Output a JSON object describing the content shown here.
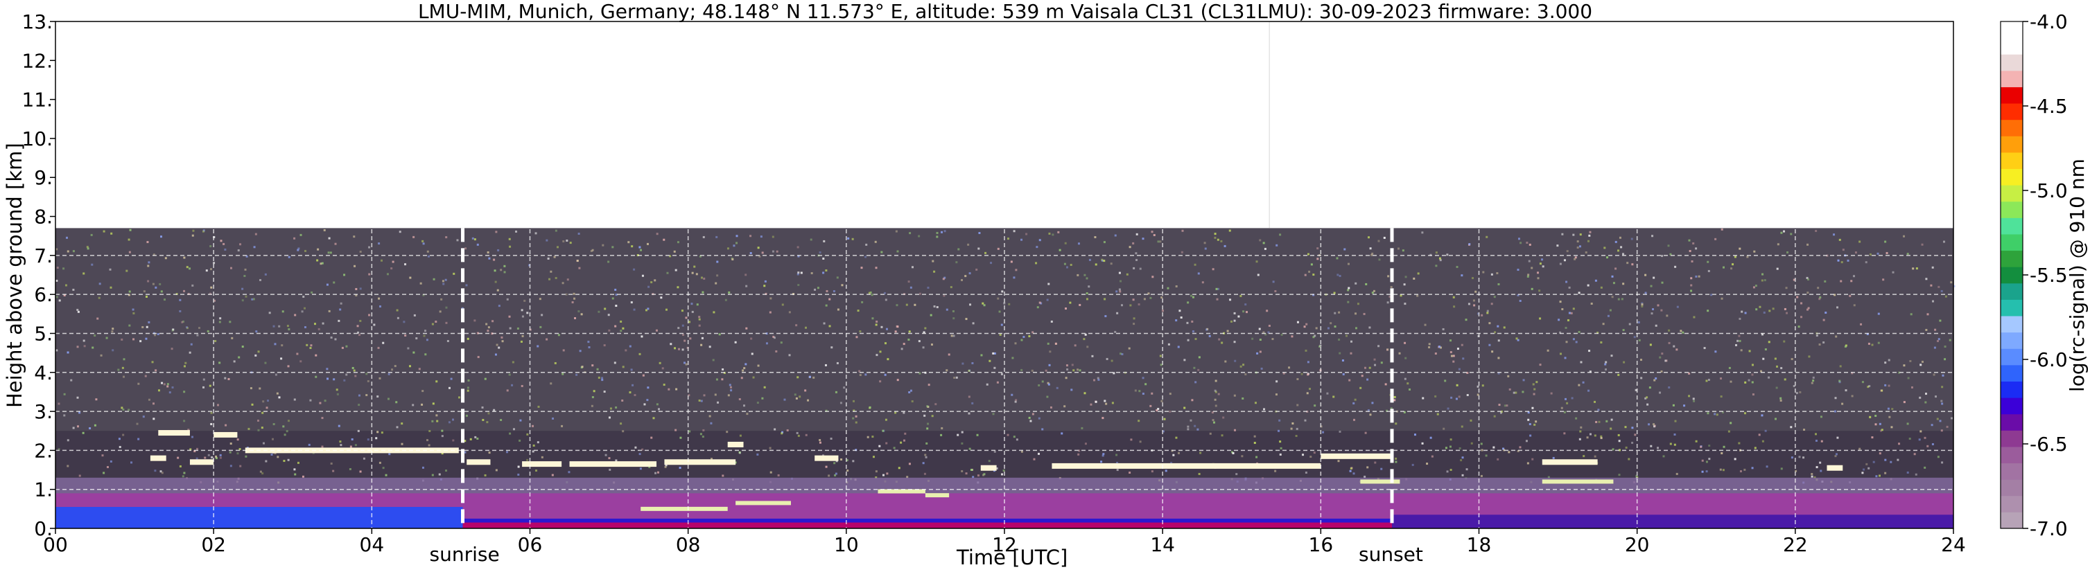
{
  "title": "LMU-MIM, Munich, Germany; 48.148° N 11.573° E, altitude: 539 m    Vaisala CL31 (CL31LMU): 30-09-2023    firmware: 3.000",
  "chart_data": {
    "type": "heatmap",
    "title": "LMU-MIM, Munich, Germany; 48.148° N 11.573° E, altitude: 539 m    Vaisala CL31 (CL31LMU): 30-09-2023    firmware: 3.000",
    "xlabel": "Time [UTC]",
    "ylabel": "Height above ground [km]",
    "xlim": [
      0,
      24
    ],
    "ylim": [
      0,
      13
    ],
    "x_ticks": [
      0,
      2,
      4,
      6,
      8,
      10,
      12,
      14,
      16,
      18,
      20,
      22,
      24
    ],
    "x_tick_labels": [
      "00",
      "02",
      "04",
      "06",
      "08",
      "10",
      "12",
      "14",
      "16",
      "18",
      "20",
      "22",
      "24"
    ],
    "y_ticks": [
      0,
      1,
      2,
      3,
      4,
      5,
      6,
      7,
      8,
      9,
      10,
      11,
      12,
      13
    ],
    "y_tick_labels": [
      "0.",
      "1.",
      "2.",
      "3.",
      "4.",
      "5.",
      "6.",
      "7.",
      "8.",
      "9.",
      "10.",
      "11.",
      "12.",
      "13."
    ],
    "grid": true,
    "data_top_km": 7.7,
    "events": [
      {
        "label": "sunrise",
        "time": 5.15
      },
      {
        "label": "sunset",
        "time": 16.9
      }
    ],
    "cloud_layers": [
      {
        "t0": 1.3,
        "t1": 1.7,
        "height": 2.45
      },
      {
        "t0": 2.0,
        "t1": 2.3,
        "height": 2.4
      },
      {
        "t0": 1.2,
        "t1": 1.4,
        "height": 1.8
      },
      {
        "t0": 1.7,
        "t1": 2.0,
        "height": 1.7
      },
      {
        "t0": 2.4,
        "t1": 5.1,
        "height": 2.0
      },
      {
        "t0": 5.2,
        "t1": 5.5,
        "height": 1.7
      },
      {
        "t0": 5.9,
        "t1": 6.4,
        "height": 1.65
      },
      {
        "t0": 6.5,
        "t1": 7.6,
        "height": 1.65
      },
      {
        "t0": 7.7,
        "t1": 8.6,
        "height": 1.7
      },
      {
        "t0": 8.5,
        "t1": 8.7,
        "height": 2.15
      },
      {
        "t0": 9.6,
        "t1": 9.9,
        "height": 1.8
      },
      {
        "t0": 11.7,
        "t1": 11.9,
        "height": 1.55
      },
      {
        "t0": 12.6,
        "t1": 16.0,
        "height": 1.6
      },
      {
        "t0": 16.0,
        "t1": 16.9,
        "height": 1.85
      },
      {
        "t0": 18.8,
        "t1": 19.5,
        "height": 1.7
      },
      {
        "t0": 22.4,
        "t1": 22.6,
        "height": 1.55
      }
    ],
    "low_layers": [
      {
        "t0": 7.4,
        "t1": 8.5,
        "height": 0.5
      },
      {
        "t0": 8.6,
        "t1": 9.3,
        "height": 0.65
      },
      {
        "t0": 10.4,
        "t1": 11.0,
        "height": 0.95
      },
      {
        "t0": 11.0,
        "t1": 11.3,
        "height": 0.85
      },
      {
        "t0": 16.5,
        "t1": 17.0,
        "height": 1.2
      },
      {
        "t0": 18.8,
        "t1": 19.7,
        "height": 1.2
      }
    ],
    "colorbar": {
      "label": "log(rc-signal) @ 910 nm",
      "range": [
        -7.0,
        -4.0
      ],
      "ticks": [
        -7.0,
        -6.5,
        -6.0,
        -5.5,
        -5.0,
        -4.5,
        -4.0
      ],
      "tick_labels": [
        "-7.0",
        "-6.5",
        "-6.0",
        "-5.5",
        "-5.0",
        "-4.5",
        "-4.0"
      ],
      "colors": [
        "#b7a3b7",
        "#ae90ae",
        "#a47fa5",
        "#a273a3",
        "#9b5c9c",
        "#8e3a92",
        "#6a0ca8",
        "#3b00d8",
        "#1b2cf4",
        "#2f64fc",
        "#5a8cff",
        "#7ea9ff",
        "#a5c8ff",
        "#25bfae",
        "#1aa38c",
        "#138e3e",
        "#2ea33b",
        "#3fcf68",
        "#4fe29a",
        "#8ce859",
        "#c7ef44",
        "#f7ef22",
        "#ffcf15",
        "#ff9f0b",
        "#ff6e06",
        "#ff2d00",
        "#ea0000",
        "#f4b3b3",
        "#ead9d9",
        "#ffffff",
        "#ffffff"
      ]
    }
  }
}
